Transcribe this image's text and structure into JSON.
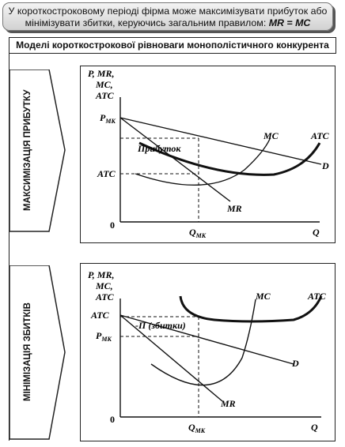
{
  "header": {
    "line1": "У короткостроковому періоді фірма може максимізувати прибуток або",
    "line2_prefix": "мінімізувати збитки, керуючись загальним правилом:",
    "rule": "MR = MC"
  },
  "subheader": "Моделі короткострокової рівноваги монополістичного конкурента",
  "panels": [
    {
      "side_label": "МАКСИМІЗАЦІЯ ПРИБУТКУ",
      "y_axis_label": [
        "P, MR,",
        "MC,",
        "ATC"
      ],
      "x_axis_label": "Q",
      "origin": "0",
      "price_label": "P",
      "price_sub": "МК",
      "atc_label": "ATC",
      "q_label": "Q",
      "q_sub": "МК",
      "region_label": "Прибуток",
      "curve_labels": {
        "mc": "MC",
        "atc": "ATC",
        "d": "D",
        "mr": "MR"
      }
    },
    {
      "side_label": "МІНІМІЗАЦІЯ ЗБИТКІВ",
      "y_axis_label": [
        "P, MR,",
        "MC,",
        "ATC"
      ],
      "x_axis_label": "Q",
      "origin": "0",
      "atc_label": "ATC",
      "price_label": "P",
      "price_sub": "МК",
      "q_label": "Q",
      "q_sub": "МК",
      "region_label": "-П (збитки)",
      "curve_labels": {
        "mc": "MC",
        "atc": "ATC",
        "d": "D",
        "mr": "MR"
      }
    }
  ]
}
